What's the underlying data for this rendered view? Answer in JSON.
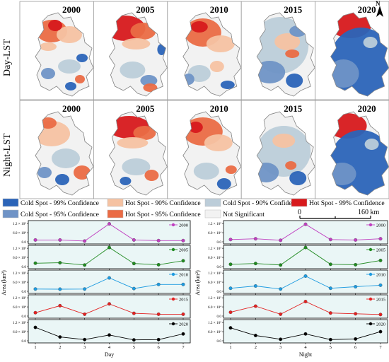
{
  "maps": {
    "years": [
      "2000",
      "2005",
      "2010",
      "2015",
      "2020"
    ],
    "row_labels": [
      "Day-LST",
      "Night-LST"
    ],
    "north_label": "N",
    "scale_bar": {
      "start": "0",
      "end": "160 km"
    }
  },
  "legend": {
    "items": [
      {
        "label": "Cold Spot - 99% Confidence",
        "color": "#2b64b8"
      },
      {
        "label": "Hot Spot - 90% Confidence",
        "color": "#f5c2a2"
      },
      {
        "label": "Cold Spot - 90% Confidence",
        "color": "#bccdd9"
      },
      {
        "label": "Hot Spot - 99% Confidence",
        "color": "#d7191c"
      },
      {
        "label": "Cold Spot - 95% Confidence",
        "color": "#6f93c6"
      },
      {
        "label": "Hot Spot - 95% Confidence",
        "color": "#ea6b45"
      },
      {
        "label": "Not Significant",
        "color": "#f2f2f2"
      }
    ]
  },
  "colors": {
    "not_significant": "#f2f2f2",
    "cold99": "#2b64b8",
    "cold95": "#6f93c6",
    "cold90": "#bccdd9",
    "hot90": "#f5c2a2",
    "hot95": "#ea6b45",
    "hot99": "#d7191c",
    "chart_bg": "#eaf6f6"
  },
  "chart_data": [
    {
      "type": "line",
      "panel": "Day",
      "xlabel": "Day",
      "ylabel": "Area (km²)",
      "x": [
        1,
        2,
        3,
        4,
        5,
        6,
        7
      ],
      "ytick_labels": [
        "0.0",
        "6.0 × 10⁴",
        "1.2 × 10⁵"
      ],
      "ylim": [
        0,
        130000
      ],
      "series": [
        {
          "name": "2000",
          "color": "#c040c0",
          "values": [
            12000,
            12000,
            5000,
            118000,
            12000,
            8000,
            8000
          ]
        },
        {
          "name": "2005",
          "color": "#228b22",
          "values": [
            22000,
            25000,
            10000,
            125000,
            20000,
            12000,
            38000
          ]
        },
        {
          "name": "2010",
          "color": "#1e9be0",
          "values": [
            15000,
            14000,
            15000,
            88000,
            18000,
            45000,
            45000
          ]
        },
        {
          "name": "2015",
          "color": "#e32222",
          "values": [
            22000,
            68000,
            12000,
            80000,
            18000,
            12000,
            12000
          ]
        },
        {
          "name": "2020",
          "color": "#000000",
          "values": [
            88000,
            25000,
            8000,
            38000,
            6000,
            8000,
            45000
          ]
        }
      ]
    },
    {
      "type": "line",
      "panel": "Night",
      "xlabel": "Night",
      "ylabel": "Area (km²)",
      "x": [
        1,
        2,
        3,
        4,
        5,
        6,
        7
      ],
      "ytick_labels": [
        "0.0",
        "6.0 × 10⁴",
        "1.2 × 10⁵"
      ],
      "ylim": [
        0,
        130000
      ],
      "series": [
        {
          "name": "2000",
          "color": "#c040c0",
          "values": [
            15000,
            20000,
            10000,
            115000,
            15000,
            12000,
            20000
          ]
        },
        {
          "name": "2005",
          "color": "#228b22",
          "values": [
            15000,
            20000,
            10000,
            125000,
            15000,
            12000,
            40000
          ]
        },
        {
          "name": "2010",
          "color": "#1e9be0",
          "values": [
            20000,
            35000,
            15000,
            100000,
            20000,
            30000,
            40000
          ]
        },
        {
          "name": "2015",
          "color": "#e32222",
          "values": [
            25000,
            65000,
            12000,
            95000,
            20000,
            15000,
            10000
          ]
        },
        {
          "name": "2020",
          "color": "#000000",
          "values": [
            85000,
            35000,
            10000,
            45000,
            8000,
            12000,
            60000
          ]
        }
      ]
    }
  ]
}
